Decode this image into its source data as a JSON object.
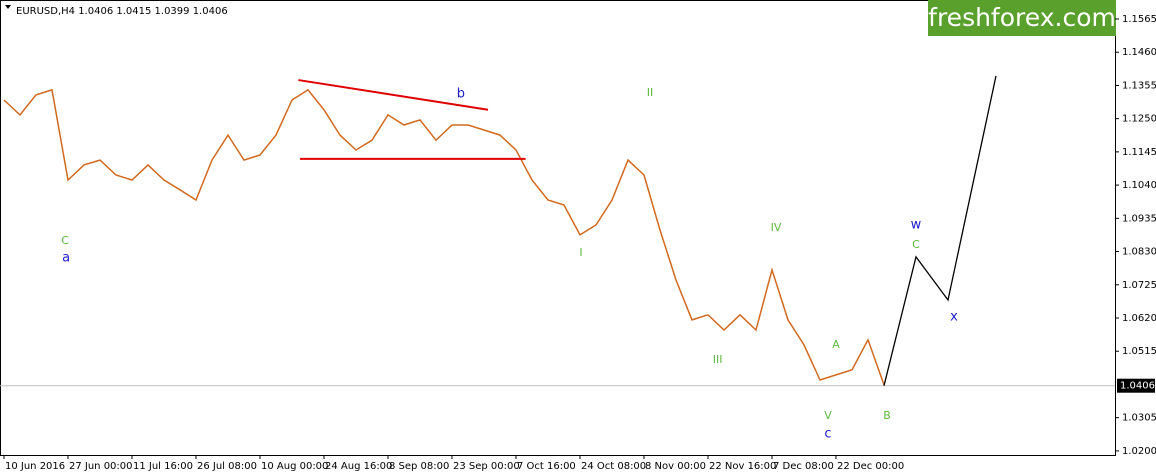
{
  "chart_data": {
    "type": "line",
    "title": "EURUSD,H4  1.0406 1.0415 1.0399 1.0406",
    "watermark": "freshforex.com",
    "categories": [
      "10 Jun 2016",
      null,
      null,
      null,
      "27 Jun 00:00",
      null,
      null,
      null,
      "11 Jul 16:00",
      null,
      null,
      null,
      "26 Jul 08:00",
      null,
      null,
      null,
      "10 Aug 00:00",
      null,
      null,
      null,
      "24 Aug 16:00",
      null,
      null,
      null,
      "8 Sep 08:00",
      null,
      null,
      null,
      "23 Sep 00:00",
      null,
      null,
      null,
      "7 Oct 16:00",
      null,
      null,
      null,
      "24 Oct 08:00",
      null,
      null,
      null,
      "8 Nov 00:00",
      null,
      null,
      null,
      "22 Nov 16:00",
      null,
      null,
      null,
      "7 Dec 08:00",
      null,
      null,
      null,
      "22 Dec 00:00",
      null,
      null,
      null
    ],
    "xlim": [
      -0.25,
      69.44
    ],
    "ylim": [
      1.0187,
      1.1625
    ],
    "yticks": [
      1.1565,
      {
        "value": 1.146,
        "label": "1.1460"
      },
      1.1355,
      {
        "value": 1.125,
        "label": "1.1250"
      },
      1.1145,
      {
        "value": 1.104,
        "label": "1.1040"
      },
      1.0935,
      {
        "value": 1.083,
        "label": "1.0830"
      },
      1.0725,
      {
        "value": 1.062,
        "label": "1.0620"
      },
      1.0515,
      1.0305,
      {
        "value": 1.02,
        "label": "1.0200"
      }
    ],
    "last_price": 1.0406,
    "series": [
      {
        "color": "#d2691e",
        "values": [
          1.1309,
          1.1262,
          1.1325,
          1.1341,
          1.1056,
          1.1104,
          1.1119,
          1.1072,
          1.1056,
          1.1104,
          1.1056,
          1.1025,
          1.0993,
          1.1119,
          1.1198,
          1.1119,
          1.1135,
          1.1198,
          1.1309,
          1.1341,
          1.1278,
          1.1198,
          1.1151,
          1.1182,
          1.1262,
          1.123,
          1.1246,
          1.1182,
          1.123,
          1.123,
          1.1214,
          1.1198,
          1.1151,
          1.1056,
          1.0993,
          1.0977,
          1.0883,
          1.0914,
          1.0993,
          1.1119,
          1.1072,
          1.0898,
          1.074,
          1.0614,
          1.063,
          1.0582,
          1.063,
          1.0582,
          1.0772,
          1.0614,
          1.0535,
          1.0424,
          1.044,
          1.0456,
          1.0551,
          1.0409
        ]
      },
      {
        "color": "#000000",
        "x": [
          55,
          57,
          59,
          62
        ],
        "values": [
          1.0406,
          1.0813,
          1.0677,
          1.1385
        ]
      }
    ],
    "trendlines": [
      {
        "color": "#e00000",
        "x": [
          18.4,
          30.25
        ],
        "values": [
          1.1372,
          1.1278
        ]
      },
      {
        "color": "#e00000",
        "x": [
          18.5,
          32.6
        ],
        "values": [
          1.1123,
          1.1123
        ]
      }
    ],
    "annotations": [
      {
        "text": "C",
        "x": 3.81,
        "y": 1.0864,
        "color": "#5cb83c"
      },
      {
        "text": "a",
        "x": 3.88,
        "y": 1.081,
        "color": "#1c1ccc"
      },
      {
        "text": "b",
        "x": 28.56,
        "y": 1.1328,
        "color": "#1c1ccc"
      },
      {
        "text": "II",
        "x": 40.375,
        "y": 1.1331,
        "color": "#5cb83c"
      },
      {
        "text": "I",
        "x": 36.06,
        "y": 1.0826,
        "color": "#5cb83c"
      },
      {
        "text": "III",
        "x": 44.6,
        "y": 1.0488,
        "color": "#5cb83c"
      },
      {
        "text": "IV",
        "x": 48.25,
        "y": 1.0905,
        "color": "#5cb83c"
      },
      {
        "text": "V",
        "x": 51.5,
        "y": 1.0311,
        "color": "#5cb83c"
      },
      {
        "text": "c",
        "x": 51.5,
        "y": 1.0254,
        "color": "#1c1ccc"
      },
      {
        "text": "A",
        "x": 52,
        "y": 1.0535,
        "color": "#5cb83c"
      },
      {
        "text": "B",
        "x": 55.19,
        "y": 1.0311,
        "color": "#5cb83c"
      },
      {
        "text": "w",
        "x": 57,
        "y": 1.0914,
        "color": "#1c1ccc"
      },
      {
        "text": "C",
        "x": 57,
        "y": 1.0851,
        "color": "#5cb83c"
      },
      {
        "text": "x",
        "x": 59.375,
        "y": 1.0623,
        "color": "#1c1ccc"
      }
    ]
  }
}
